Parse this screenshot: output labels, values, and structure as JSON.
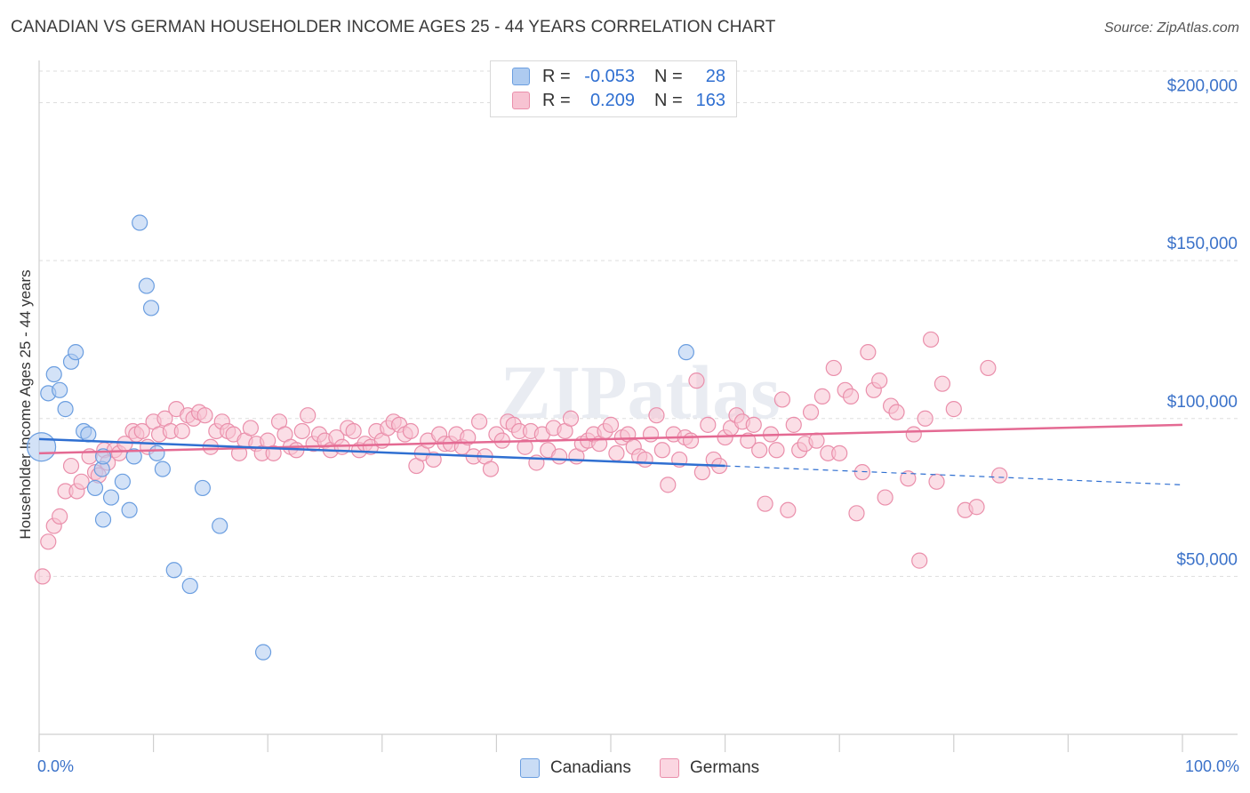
{
  "title": "CANADIAN VS GERMAN HOUSEHOLDER INCOME AGES 25 - 44 YEARS CORRELATION CHART",
  "source": "Source: ZipAtlas.com",
  "watermark": "ZIPatlas",
  "colors": {
    "canadians_fill": "#aecbf0",
    "canadians_stroke": "#6b9ee0",
    "canadians_line": "#2f6fd1",
    "germans_fill": "#f7c3d2",
    "germans_stroke": "#ea8fab",
    "germans_line": "#e46a93",
    "axis_text": "#3b72c9",
    "grid": "#dddddd"
  },
  "legend": {
    "rows": [
      {
        "r_label": "R =",
        "r_value": "-0.053",
        "n_label": "N =",
        "n_value": "28",
        "series": "Canadians"
      },
      {
        "r_label": "R =",
        "r_value": "0.209",
        "n_label": "N =",
        "n_value": "163",
        "series": "Germans"
      }
    ]
  },
  "bottom_legend": {
    "canadians": "Canadians",
    "germans": "Germans"
  },
  "chart_data": {
    "type": "scatter",
    "title": "CANADIAN VS GERMAN HOUSEHOLDER INCOME AGES 25 - 44 YEARS CORRELATION CHART",
    "xlabel": "",
    "ylabel": "Householder Income Ages 25 - 44 years",
    "xlim": [
      0,
      100
    ],
    "ylim": [
      0,
      210000
    ],
    "x_tick_labels": [
      "0.0%",
      "100.0%"
    ],
    "y_ticks": [
      50000,
      100000,
      150000,
      200000
    ],
    "y_tick_labels": [
      "$50,000",
      "$100,000",
      "$150,000",
      "$200,000"
    ],
    "grid": true,
    "series": [
      {
        "name": "Canadians",
        "r": -0.053,
        "n": 28,
        "trend": {
          "x": [
            0,
            60
          ],
          "y": [
            93500,
            85000
          ],
          "dashed_extension": {
            "x": [
              60,
              100
            ],
            "y": [
              85000,
              79000
            ]
          }
        },
        "points": [
          [
            0.2,
            91000
          ],
          [
            0.8,
            108000
          ],
          [
            1.3,
            114000
          ],
          [
            1.8,
            109000
          ],
          [
            2.3,
            103000
          ],
          [
            2.8,
            118000
          ],
          [
            3.2,
            121000
          ],
          [
            3.9,
            96000
          ],
          [
            4.3,
            95000
          ],
          [
            5.5,
            84000
          ],
          [
            4.9,
            78000
          ],
          [
            5.6,
            88000
          ],
          [
            5.6,
            68000
          ],
          [
            6.3,
            75000
          ],
          [
            7.3,
            80000
          ],
          [
            7.9,
            71000
          ],
          [
            8.3,
            88000
          ],
          [
            8.8,
            162000
          ],
          [
            9.4,
            142000
          ],
          [
            9.8,
            135000
          ],
          [
            10.3,
            89000
          ],
          [
            10.8,
            84000
          ],
          [
            11.8,
            52000
          ],
          [
            13.2,
            47000
          ],
          [
            14.3,
            78000
          ],
          [
            15.8,
            66000
          ],
          [
            19.6,
            26000
          ],
          [
            56.6,
            121000
          ]
        ]
      },
      {
        "name": "Germans",
        "r": 0.209,
        "n": 163,
        "trend": {
          "x": [
            0,
            100
          ],
          "y": [
            89000,
            98000
          ]
        },
        "points": [
          [
            0.3,
            50000
          ],
          [
            0.8,
            61000
          ],
          [
            1.3,
            66000
          ],
          [
            1.8,
            69000
          ],
          [
            2.3,
            77000
          ],
          [
            2.8,
            85000
          ],
          [
            3.3,
            77000
          ],
          [
            3.7,
            80000
          ],
          [
            4.4,
            88000
          ],
          [
            4.9,
            83000
          ],
          [
            5.2,
            82000
          ],
          [
            5.7,
            90000
          ],
          [
            6.0,
            86000
          ],
          [
            6.6,
            90000
          ],
          [
            7.0,
            89000
          ],
          [
            7.5,
            92000
          ],
          [
            8.2,
            96000
          ],
          [
            8.5,
            95000
          ],
          [
            9.0,
            96000
          ],
          [
            9.5,
            91000
          ],
          [
            10.0,
            99000
          ],
          [
            10.5,
            95000
          ],
          [
            11.0,
            100000
          ],
          [
            11.5,
            96000
          ],
          [
            12.0,
            103000
          ],
          [
            12.5,
            96000
          ],
          [
            13.0,
            101000
          ],
          [
            13.5,
            100000
          ],
          [
            14.0,
            102000
          ],
          [
            14.5,
            101000
          ],
          [
            15.0,
            91000
          ],
          [
            15.5,
            96000
          ],
          [
            16.0,
            99000
          ],
          [
            16.5,
            96000
          ],
          [
            17.0,
            95000
          ],
          [
            17.5,
            89000
          ],
          [
            18.0,
            93000
          ],
          [
            18.5,
            97000
          ],
          [
            19.0,
            92000
          ],
          [
            19.5,
            89000
          ],
          [
            20.0,
            93000
          ],
          [
            20.5,
            89000
          ],
          [
            21.0,
            99000
          ],
          [
            21.5,
            95000
          ],
          [
            22.0,
            91000
          ],
          [
            22.5,
            90000
          ],
          [
            23.0,
            96000
          ],
          [
            23.5,
            101000
          ],
          [
            24.0,
            92000
          ],
          [
            24.5,
            95000
          ],
          [
            25.0,
            93000
          ],
          [
            25.5,
            90000
          ],
          [
            26.0,
            94000
          ],
          [
            26.5,
            91000
          ],
          [
            27.0,
            97000
          ],
          [
            27.5,
            96000
          ],
          [
            28.0,
            90000
          ],
          [
            28.5,
            92000
          ],
          [
            29.0,
            91000
          ],
          [
            29.5,
            96000
          ],
          [
            30.0,
            93000
          ],
          [
            30.5,
            97000
          ],
          [
            31.0,
            99000
          ],
          [
            31.5,
            98000
          ],
          [
            32.0,
            95000
          ],
          [
            32.5,
            96000
          ],
          [
            33.0,
            85000
          ],
          [
            33.5,
            89000
          ],
          [
            34.0,
            93000
          ],
          [
            34.5,
            87000
          ],
          [
            35.0,
            95000
          ],
          [
            35.5,
            92000
          ],
          [
            36.0,
            92000
          ],
          [
            36.5,
            95000
          ],
          [
            37.0,
            91000
          ],
          [
            37.5,
            94000
          ],
          [
            38.0,
            88000
          ],
          [
            38.5,
            99000
          ],
          [
            39.0,
            88000
          ],
          [
            39.5,
            84000
          ],
          [
            40.0,
            95000
          ],
          [
            40.5,
            93000
          ],
          [
            41.0,
            99000
          ],
          [
            41.5,
            98000
          ],
          [
            42.0,
            96000
          ],
          [
            42.5,
            91000
          ],
          [
            43.0,
            96000
          ],
          [
            43.5,
            86000
          ],
          [
            44.0,
            95000
          ],
          [
            44.5,
            90000
          ],
          [
            45.0,
            97000
          ],
          [
            45.5,
            88000
          ],
          [
            46.0,
            96000
          ],
          [
            46.5,
            100000
          ],
          [
            47.0,
            88000
          ],
          [
            47.5,
            92000
          ],
          [
            48.0,
            93000
          ],
          [
            48.5,
            95000
          ],
          [
            49.0,
            92000
          ],
          [
            49.5,
            96000
          ],
          [
            50.0,
            98000
          ],
          [
            50.5,
            89000
          ],
          [
            51.0,
            94000
          ],
          [
            51.5,
            95000
          ],
          [
            52.0,
            91000
          ],
          [
            52.5,
            88000
          ],
          [
            53.0,
            87000
          ],
          [
            53.5,
            95000
          ],
          [
            54.0,
            101000
          ],
          [
            54.5,
            90000
          ],
          [
            55.0,
            79000
          ],
          [
            55.5,
            95000
          ],
          [
            56.0,
            87000
          ],
          [
            56.5,
            94000
          ],
          [
            57.0,
            93000
          ],
          [
            57.5,
            112000
          ],
          [
            58.0,
            83000
          ],
          [
            58.5,
            98000
          ],
          [
            59.0,
            87000
          ],
          [
            59.5,
            85000
          ],
          [
            60.0,
            94000
          ],
          [
            60.5,
            97000
          ],
          [
            61.0,
            101000
          ],
          [
            61.5,
            99000
          ],
          [
            62.0,
            93000
          ],
          [
            62.5,
            98000
          ],
          [
            63.0,
            90000
          ],
          [
            63.5,
            73000
          ],
          [
            64.0,
            95000
          ],
          [
            64.5,
            90000
          ],
          [
            65.0,
            106000
          ],
          [
            65.5,
            71000
          ],
          [
            66.0,
            98000
          ],
          [
            66.5,
            90000
          ],
          [
            67.0,
            92000
          ],
          [
            67.5,
            102000
          ],
          [
            68.0,
            93000
          ],
          [
            68.5,
            107000
          ],
          [
            69.0,
            89000
          ],
          [
            69.5,
            116000
          ],
          [
            70.0,
            89000
          ],
          [
            70.5,
            109000
          ],
          [
            71.0,
            107000
          ],
          [
            71.5,
            70000
          ],
          [
            72.0,
            83000
          ],
          [
            72.5,
            121000
          ],
          [
            73.0,
            109000
          ],
          [
            73.5,
            112000
          ],
          [
            74.0,
            75000
          ],
          [
            74.5,
            104000
          ],
          [
            75.0,
            102000
          ],
          [
            76.0,
            81000
          ],
          [
            76.5,
            95000
          ],
          [
            77.0,
            55000
          ],
          [
            77.5,
            100000
          ],
          [
            78.0,
            125000
          ],
          [
            78.5,
            80000
          ],
          [
            79.0,
            111000
          ],
          [
            80.0,
            103000
          ],
          [
            81.0,
            71000
          ],
          [
            82.0,
            72000
          ],
          [
            83.0,
            116000
          ],
          [
            84.0,
            82000
          ]
        ]
      }
    ]
  }
}
